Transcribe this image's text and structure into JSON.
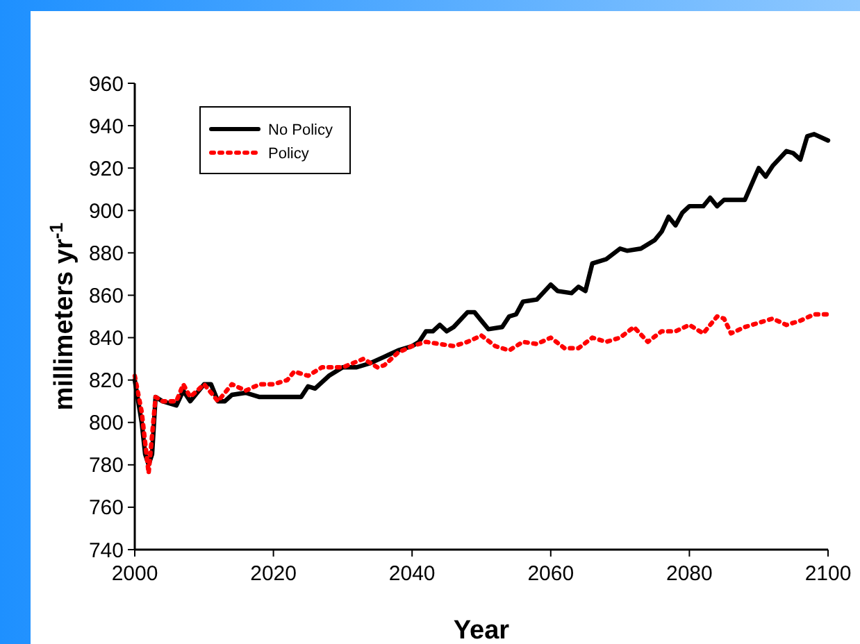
{
  "chart_data": {
    "type": "line",
    "xlabel": "Year",
    "ylabel": "millimeters yr$^{-1}$",
    "xlim": [
      2000,
      2100
    ],
    "xticks": [
      2000,
      2020,
      2040,
      2060,
      2080,
      2100
    ],
    "ylim": [
      740,
      960
    ],
    "yticks": [
      740,
      760,
      780,
      800,
      820,
      840,
      860,
      880,
      900,
      920,
      940,
      960
    ],
    "grid": false,
    "legend": "top left",
    "marker": "none",
    "series": [
      {
        "name": "No Policy",
        "color": "#000000",
        "line_style": "solid",
        "x": [
          2000,
          2001,
          2001.5,
          2002,
          2002.5,
          2003,
          2004,
          2006,
          2007,
          2008,
          2010,
          2011,
          2012,
          2013,
          2014,
          2016,
          2018,
          2020,
          2024,
          2025,
          2026,
          2028,
          2030,
          2032,
          2034,
          2036,
          2038,
          2040,
          2041,
          2042,
          2043,
          2044,
          2045,
          2046,
          2048,
          2049,
          2050,
          2051,
          2053,
          2054,
          2055,
          2056,
          2058,
          2060,
          2061,
          2063,
          2064,
          2065,
          2066,
          2068,
          2070,
          2071,
          2073,
          2075,
          2076,
          2077,
          2078,
          2079,
          2080,
          2082,
          2083,
          2084,
          2085,
          2088,
          2090,
          2091,
          2092,
          2094,
          2095,
          2096,
          2097,
          2098,
          2100
        ],
        "values": [
          820,
          800,
          785,
          780,
          785,
          812,
          810,
          808,
          815,
          810,
          818,
          818,
          810,
          810,
          813,
          814,
          812,
          812,
          812,
          817,
          816,
          822,
          826,
          826,
          828,
          831,
          834,
          836,
          838,
          843,
          843,
          846,
          843,
          845,
          852,
          852,
          848,
          844,
          845,
          850,
          851,
          857,
          858,
          865,
          862,
          861,
          864,
          862,
          875,
          877,
          882,
          881,
          882,
          886,
          890,
          897,
          893,
          899,
          902,
          902,
          906,
          902,
          905,
          905,
          920,
          916,
          921,
          928,
          927,
          924,
          935,
          936,
          933
        ]
      },
      {
        "name": "Policy",
        "color": "#ff0000",
        "line_style": "dotted",
        "x": [
          2000,
          2001,
          2002,
          2003,
          2004,
          2006,
          2007,
          2008,
          2010,
          2012,
          2014,
          2016,
          2018,
          2020,
          2022,
          2023,
          2025,
          2027,
          2030,
          2033,
          2035,
          2036,
          2038,
          2040,
          2042,
          2044,
          2046,
          2048,
          2050,
          2052,
          2054,
          2056,
          2058,
          2060,
          2062,
          2064,
          2066,
          2068,
          2070,
          2072,
          2074,
          2076,
          2078,
          2080,
          2082,
          2083,
          2084,
          2085,
          2086,
          2088,
          2090,
          2092,
          2094,
          2096,
          2098,
          2100
        ],
        "values": [
          822,
          805,
          776,
          812,
          810,
          810,
          818,
          812,
          818,
          810,
          818,
          815,
          818,
          818,
          820,
          824,
          822,
          826,
          826,
          830,
          826,
          827,
          833,
          836,
          838,
          837,
          836,
          838,
          841,
          836,
          834,
          838,
          837,
          840,
          835,
          835,
          840,
          838,
          840,
          845,
          838,
          843,
          843,
          846,
          842,
          846,
          850,
          849,
          842,
          845,
          847,
          849,
          846,
          848,
          851,
          851
        ]
      }
    ]
  }
}
